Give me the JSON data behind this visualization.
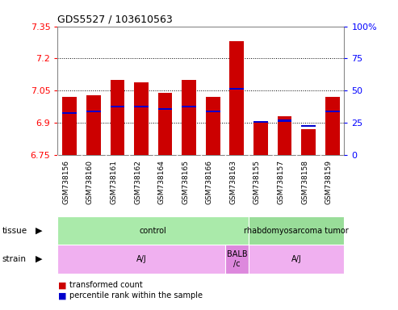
{
  "title": "GDS5527 / 103610563",
  "samples": [
    "GSM738156",
    "GSM738160",
    "GSM738161",
    "GSM738162",
    "GSM738164",
    "GSM738165",
    "GSM738166",
    "GSM738163",
    "GSM738155",
    "GSM738157",
    "GSM738158",
    "GSM738159"
  ],
  "transformed_count": [
    7.02,
    7.03,
    7.1,
    7.09,
    7.04,
    7.1,
    7.02,
    7.28,
    6.91,
    6.93,
    6.87,
    7.02
  ],
  "percentile_rank": [
    32,
    33,
    37,
    37,
    35,
    37,
    33,
    51,
    25,
    26,
    22,
    33
  ],
  "y_min": 6.75,
  "y_max": 7.35,
  "y_ticks": [
    6.75,
    6.9,
    7.05,
    7.2,
    7.35
  ],
  "y_tick_labels": [
    "6.75",
    "6.9",
    "7.05",
    "7.2",
    "7.35"
  ],
  "right_y_ticks": [
    0,
    25,
    50,
    75,
    100
  ],
  "right_y_labels": [
    "0",
    "25",
    "50",
    "75",
    "100%"
  ],
  "bar_color": "#cc0000",
  "blue_color": "#0000cc",
  "tissue_groups": [
    {
      "label": "control",
      "start": 0,
      "end": 8,
      "color": "#aaeaaa"
    },
    {
      "label": "rhabdomyosarcoma tumor",
      "start": 8,
      "end": 12,
      "color": "#99dd99"
    }
  ],
  "strain_groups": [
    {
      "label": "A/J",
      "start": 0,
      "end": 7,
      "color": "#f0b0f0"
    },
    {
      "label": "BALB\n/c",
      "start": 7,
      "end": 8,
      "color": "#dd88dd"
    },
    {
      "label": "A/J",
      "start": 8,
      "end": 12,
      "color": "#f0b0f0"
    }
  ],
  "legend_red": "transformed count",
  "legend_blue": "percentile rank within the sample",
  "xticklabel_bg": "#cccccc",
  "plot_bg": "#ffffff"
}
